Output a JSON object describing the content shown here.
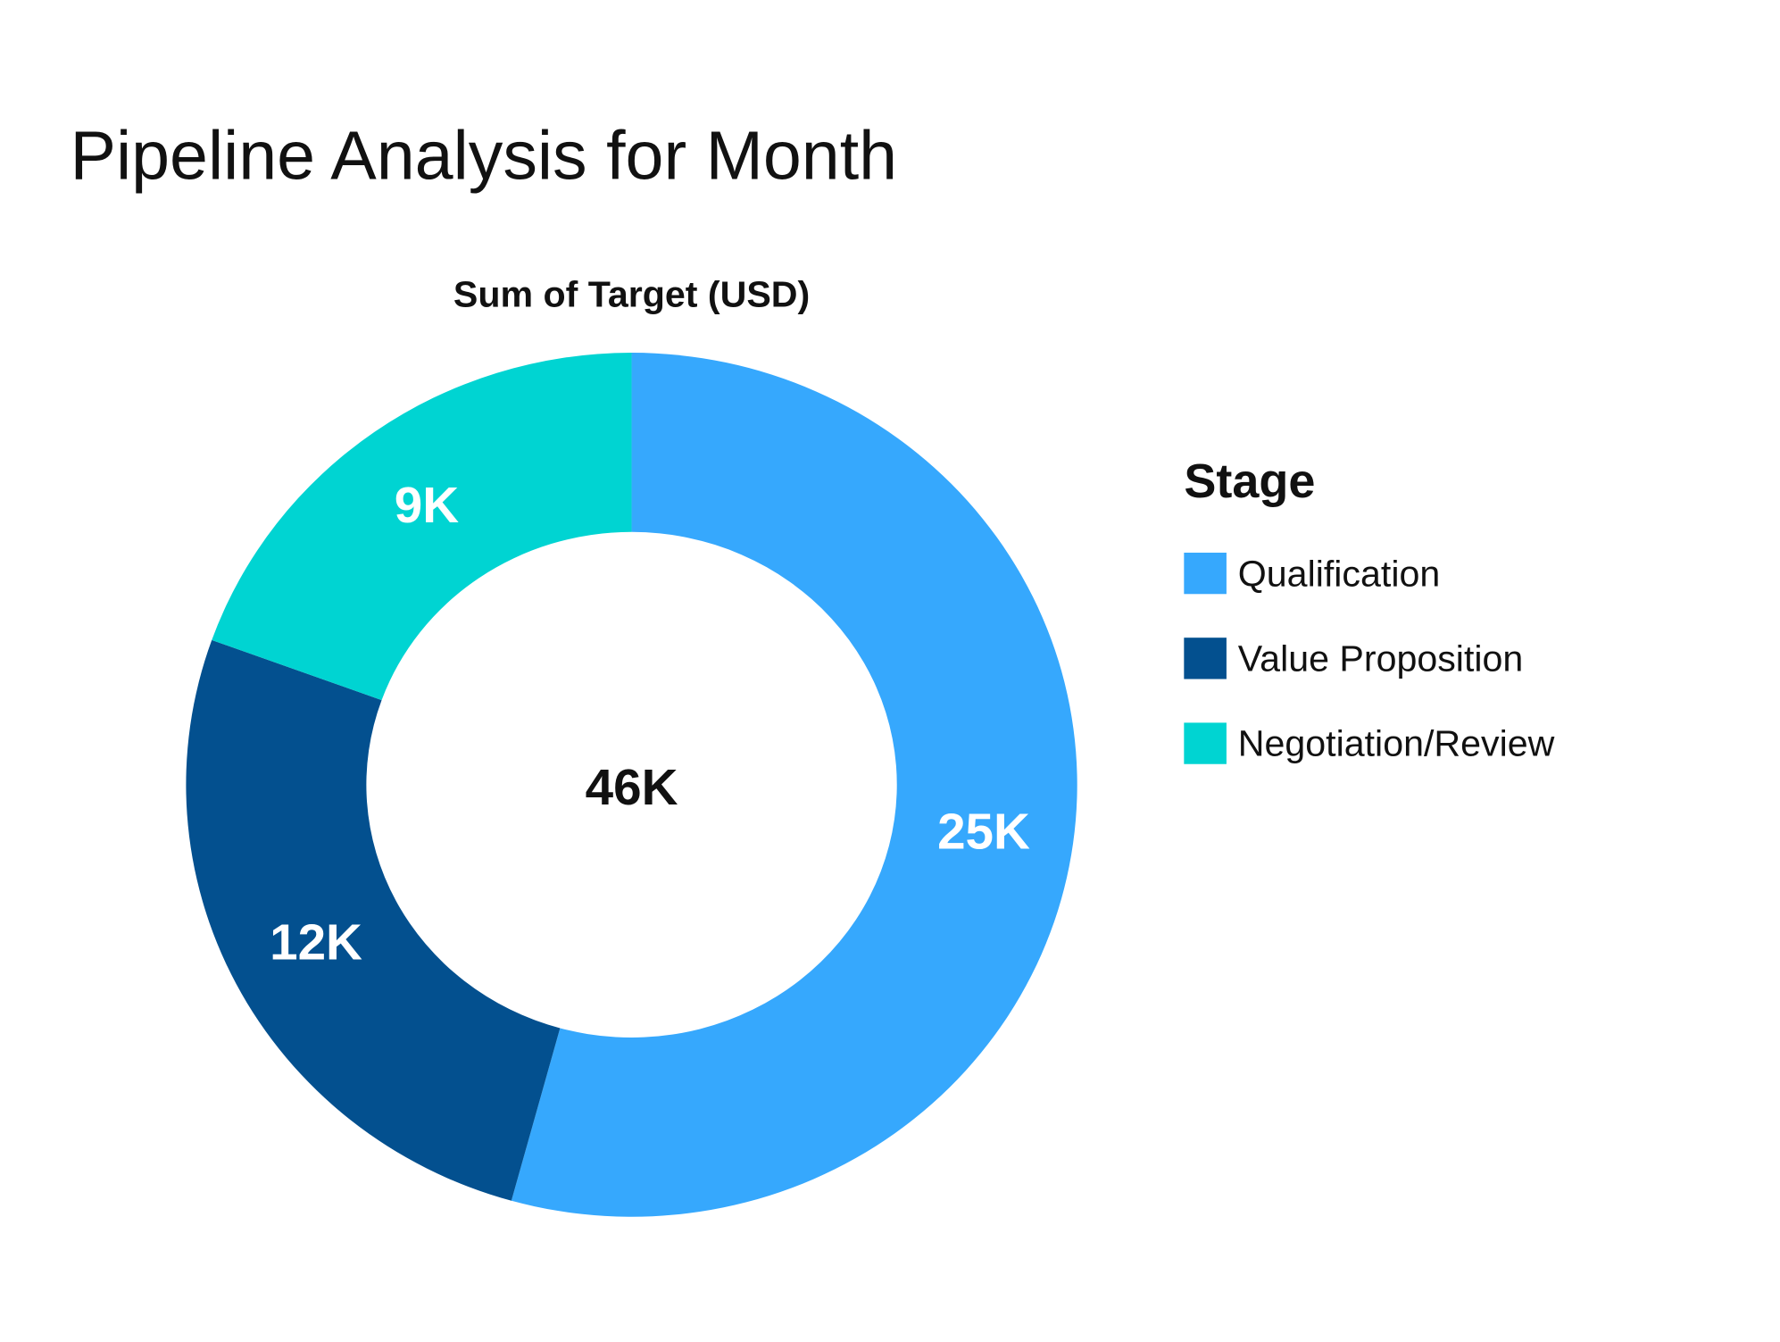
{
  "chart_data": {
    "type": "donut",
    "title": "Pipeline Analysis for Month",
    "subtitle": "Sum of Target (USD)",
    "center_label": "46K",
    "legend_title": "Stage",
    "legend_position": "right",
    "categories": [
      "Qualification",
      "Value Proposition",
      "Negotiation/Review"
    ],
    "values": [
      25,
      12,
      9
    ],
    "value_labels": [
      "25K",
      "12K",
      "9K"
    ],
    "unit": "K USD",
    "colors": [
      "#36a8fd",
      "#03508f",
      "#00d4d2"
    ]
  }
}
